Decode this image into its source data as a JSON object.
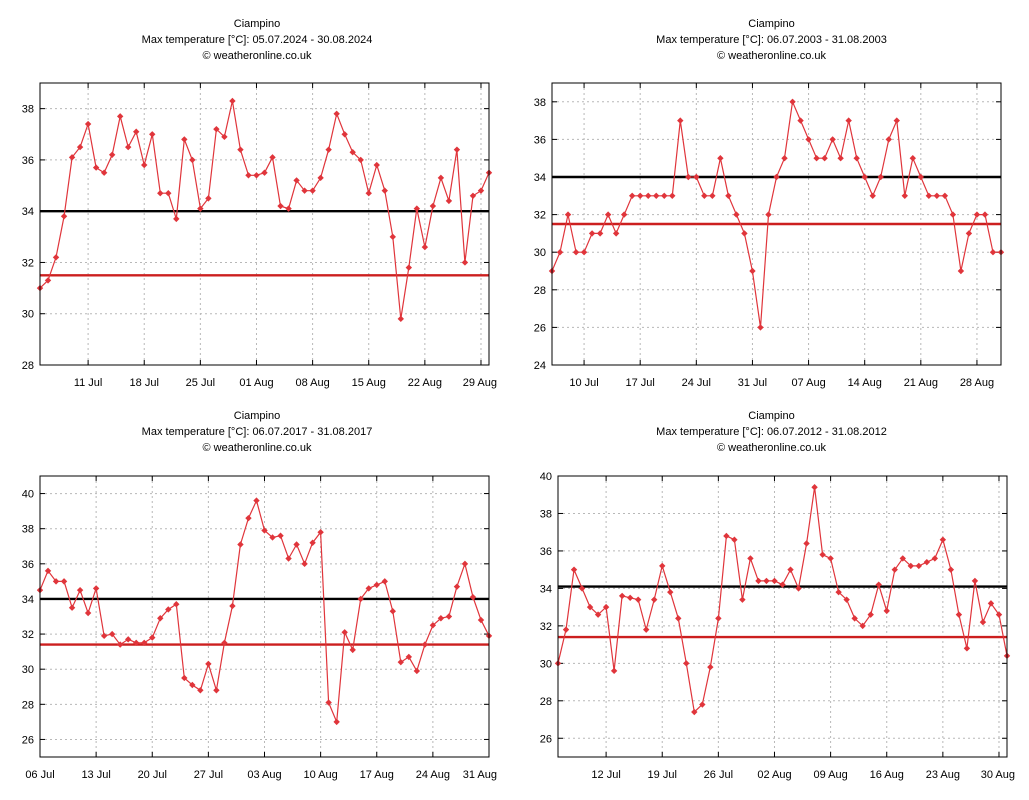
{
  "colors": {
    "series": "#e0353b",
    "mean_line": "#cc1f1f",
    "ref_line": "#000000",
    "grid": "#b8b8b8"
  },
  "charts": [
    {
      "title": "Ciampino",
      "subtitle": "Max temperature [°C]: 05.07.2024 - 30.08.2024",
      "credit": "© weatheronline.co.uk"
    },
    {
      "title": "Ciampino",
      "subtitle": "Max temperature [°C]: 06.07.2003 - 31.08.2003",
      "credit": "© weatheronline.co.uk"
    },
    {
      "title": "Ciampino",
      "subtitle": "Max temperature [°C]: 06.07.2017 - 31.08.2017",
      "credit": "© weatheronline.co.uk"
    },
    {
      "title": "Ciampino",
      "subtitle": "Max temperature [°C]: 06.07.2012 - 31.08.2012",
      "credit": "© weatheronline.co.uk"
    }
  ],
  "chart_data": [
    {
      "type": "line",
      "title": "Ciampino",
      "subtitle": "Max temperature [°C]: 05.07.2024 - 30.08.2024",
      "start_date": "05.07.2024",
      "xlabel": "",
      "ylabel": "",
      "ylim": [
        28,
        39
      ],
      "yticks": [
        28,
        30,
        32,
        34,
        36,
        38
      ],
      "xticks": [
        {
          "day": 6,
          "label": "11 Jul"
        },
        {
          "day": 13,
          "label": "18 Jul"
        },
        {
          "day": 20,
          "label": "25 Jul"
        },
        {
          "day": 27,
          "label": "01 Aug"
        },
        {
          "day": 34,
          "label": "08 Aug"
        },
        {
          "day": 41,
          "label": "15 Aug"
        },
        {
          "day": 48,
          "label": "22 Aug"
        },
        {
          "day": 55,
          "label": "29 Aug"
        }
      ],
      "grid": true,
      "reference_lines": [
        {
          "value": 34.0,
          "color": "black"
        },
        {
          "value": 31.5,
          "color": "red"
        }
      ],
      "values": [
        31.0,
        31.3,
        32.2,
        33.8,
        36.1,
        36.5,
        37.4,
        35.7,
        35.5,
        36.2,
        37.7,
        36.5,
        37.1,
        35.8,
        37.0,
        34.7,
        34.7,
        33.7,
        36.8,
        36.0,
        34.1,
        34.5,
        37.2,
        36.9,
        38.3,
        36.4,
        35.4,
        35.4,
        35.5,
        36.1,
        34.2,
        34.1,
        35.2,
        34.8,
        34.8,
        35.3,
        36.4,
        37.8,
        37.0,
        36.3,
        36.0,
        34.7,
        35.8,
        34.8,
        33.0,
        29.8,
        31.8,
        34.1,
        32.6,
        34.2,
        35.3,
        34.4,
        36.4,
        32.0,
        34.6,
        34.8,
        35.5
      ]
    },
    {
      "type": "line",
      "title": "Ciampino",
      "subtitle": "Max temperature [°C]: 06.07.2003 - 31.08.2003",
      "start_date": "06.07.2003",
      "xlabel": "",
      "ylabel": "",
      "ylim": [
        24,
        39
      ],
      "yticks": [
        24,
        26,
        28,
        30,
        32,
        34,
        36,
        38
      ],
      "xticks": [
        {
          "day": 4,
          "label": "10 Jul"
        },
        {
          "day": 11,
          "label": "17 Jul"
        },
        {
          "day": 18,
          "label": "24 Jul"
        },
        {
          "day": 25,
          "label": "31 Jul"
        },
        {
          "day": 32,
          "label": "07 Aug"
        },
        {
          "day": 39,
          "label": "14 Aug"
        },
        {
          "day": 46,
          "label": "21 Aug"
        },
        {
          "day": 53,
          "label": "28 Aug"
        }
      ],
      "grid": true,
      "reference_lines": [
        {
          "value": 34.0,
          "color": "black"
        },
        {
          "value": 31.5,
          "color": "red"
        }
      ],
      "values": [
        29,
        30,
        32,
        30,
        30,
        31,
        31,
        32,
        31,
        32,
        33,
        33,
        33,
        33,
        33,
        33,
        37,
        34,
        34,
        33,
        33,
        35,
        33,
        32,
        31,
        29,
        26,
        32,
        34,
        35,
        38,
        37,
        36,
        35,
        35,
        36,
        35,
        37,
        35,
        34,
        33,
        34,
        36,
        37,
        33,
        35,
        34,
        33,
        33,
        33,
        32,
        29,
        31,
        32,
        32,
        30,
        30
      ]
    },
    {
      "type": "line",
      "title": "Ciampino",
      "subtitle": "Max temperature [°C]: 06.07.2017 - 31.08.2017",
      "start_date": "06.07.2017",
      "xlabel": "",
      "ylabel": "",
      "ylim": [
        25,
        41
      ],
      "yticks": [
        26,
        28,
        30,
        32,
        34,
        36,
        38,
        40
      ],
      "xticks": [
        {
          "day": 0,
          "label": "06 Jul"
        },
        {
          "day": 7,
          "label": "13 Jul"
        },
        {
          "day": 14,
          "label": "20 Jul"
        },
        {
          "day": 21,
          "label": "27 Jul"
        },
        {
          "day": 28,
          "label": "03 Aug"
        },
        {
          "day": 35,
          "label": "10 Aug"
        },
        {
          "day": 42,
          "label": "17 Aug"
        },
        {
          "day": 49,
          "label": "24 Aug"
        },
        {
          "day": 56,
          "label": "31 Aug"
        }
      ],
      "grid": true,
      "reference_lines": [
        {
          "value": 34.0,
          "color": "black"
        },
        {
          "value": 31.4,
          "color": "red"
        }
      ],
      "values": [
        34.5,
        35.6,
        35.0,
        35.0,
        33.5,
        34.5,
        33.2,
        34.6,
        31.9,
        32.0,
        31.4,
        31.7,
        31.5,
        31.5,
        31.8,
        32.9,
        33.4,
        33.7,
        29.5,
        29.1,
        28.8,
        30.3,
        28.8,
        31.5,
        33.6,
        37.1,
        38.6,
        39.6,
        37.9,
        37.5,
        37.6,
        36.3,
        37.1,
        36.0,
        37.2,
        37.8,
        28.1,
        27.0,
        32.1,
        31.1,
        34.0,
        34.6,
        34.8,
        35.0,
        33.3,
        30.4,
        30.7,
        29.9,
        31.4,
        32.5,
        32.9,
        33.0,
        34.7,
        36.0,
        34.1,
        32.8,
        31.9
      ]
    },
    {
      "type": "line",
      "title": "Ciampino",
      "subtitle": "Max temperature [°C]: 06.07.2012 - 31.08.2012",
      "start_date": "06.07.2012",
      "xlabel": "",
      "ylabel": "",
      "ylim": [
        25,
        40
      ],
      "yticks": [
        26,
        28,
        30,
        32,
        34,
        36,
        38,
        40
      ],
      "xticks": [
        {
          "day": 6,
          "label": "12 Jul"
        },
        {
          "day": 13,
          "label": "19 Jul"
        },
        {
          "day": 20,
          "label": "26 Jul"
        },
        {
          "day": 27,
          "label": "02 Aug"
        },
        {
          "day": 34,
          "label": "09 Aug"
        },
        {
          "day": 41,
          "label": "16 Aug"
        },
        {
          "day": 48,
          "label": "23 Aug"
        },
        {
          "day": 55,
          "label": "30 Aug"
        }
      ],
      "grid": true,
      "reference_lines": [
        {
          "value": 34.1,
          "color": "black"
        },
        {
          "value": 31.4,
          "color": "red"
        }
      ],
      "values": [
        30.0,
        31.8,
        35.0,
        34.0,
        33.0,
        32.6,
        33.0,
        29.6,
        33.6,
        33.5,
        33.4,
        31.8,
        33.4,
        35.2,
        33.8,
        32.4,
        30.0,
        27.4,
        27.8,
        29.8,
        32.4,
        36.8,
        36.6,
        33.4,
        35.6,
        34.4,
        34.4,
        34.4,
        34.2,
        35.0,
        34.0,
        36.4,
        39.4,
        35.8,
        35.6,
        33.8,
        33.4,
        32.4,
        32.0,
        32.6,
        34.2,
        32.8,
        35.0,
        35.6,
        35.2,
        35.2,
        35.4,
        35.6,
        36.6,
        35.0,
        32.6,
        30.8,
        34.4,
        32.2,
        33.2,
        32.6,
        30.4
      ]
    }
  ]
}
